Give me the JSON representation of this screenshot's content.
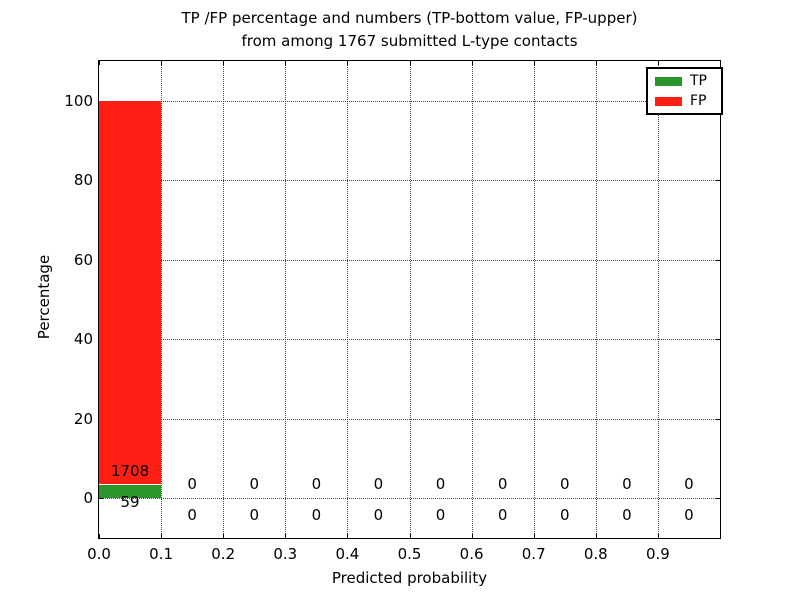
{
  "title": {
    "line1": "TP /FP percentage and numbers (TP-bottom value, FP-upper)",
    "line2": "from among 1767 submitted L-type contacts"
  },
  "chart_data": {
    "type": "bar",
    "stacked": true,
    "title": "TP /FP percentage and numbers (TP-bottom value, FP-upper) from among 1767 submitted L-type contacts",
    "xlabel": "Predicted probability",
    "ylabel": "Percentage",
    "xlim": [
      0.0,
      1.0
    ],
    "ylim": [
      -10,
      110
    ],
    "grid": {
      "style": "dotted",
      "which": "both",
      "color": "#4a4a4a"
    },
    "total_submitted": 1767,
    "bin_width": 0.1,
    "bin_starts": [
      0.0,
      0.1,
      0.2,
      0.3,
      0.4,
      0.5,
      0.6,
      0.7,
      0.8,
      0.9
    ],
    "xticks": [
      {
        "v": 0.0,
        "label": "0.0"
      },
      {
        "v": 0.1,
        "label": "0.1"
      },
      {
        "v": 0.2,
        "label": "0.2"
      },
      {
        "v": 0.3,
        "label": "0.3"
      },
      {
        "v": 0.4,
        "label": "0.4"
      },
      {
        "v": 0.5,
        "label": "0.5"
      },
      {
        "v": 0.6,
        "label": "0.6"
      },
      {
        "v": 0.7,
        "label": "0.7"
      },
      {
        "v": 0.8,
        "label": "0.8"
      },
      {
        "v": 0.9,
        "label": "0.9"
      }
    ],
    "yticks": [
      {
        "v": 0,
        "label": "0"
      },
      {
        "v": 20,
        "label": "20"
      },
      {
        "v": 40,
        "label": "40"
      },
      {
        "v": 60,
        "label": "60"
      },
      {
        "v": 80,
        "label": "80"
      },
      {
        "v": 100,
        "label": "100"
      }
    ],
    "series": [
      {
        "name": "TP",
        "color": "#2a952a",
        "counts": [
          59,
          0,
          0,
          0,
          0,
          0,
          0,
          0,
          0,
          0
        ],
        "percent": [
          3.34,
          0,
          0,
          0,
          0,
          0,
          0,
          0,
          0,
          0
        ]
      },
      {
        "name": "FP",
        "color": "#ff1e14",
        "counts": [
          1708,
          0,
          0,
          0,
          0,
          0,
          0,
          0,
          0,
          0
        ],
        "percent": [
          96.66,
          0,
          0,
          0,
          0,
          0,
          0,
          0,
          0,
          0
        ]
      }
    ],
    "legend": {
      "position": "upper-right",
      "entries": [
        {
          "label": "TP",
          "color": "#2a952a"
        },
        {
          "label": "FP",
          "color": "#ff1e14"
        }
      ]
    }
  }
}
